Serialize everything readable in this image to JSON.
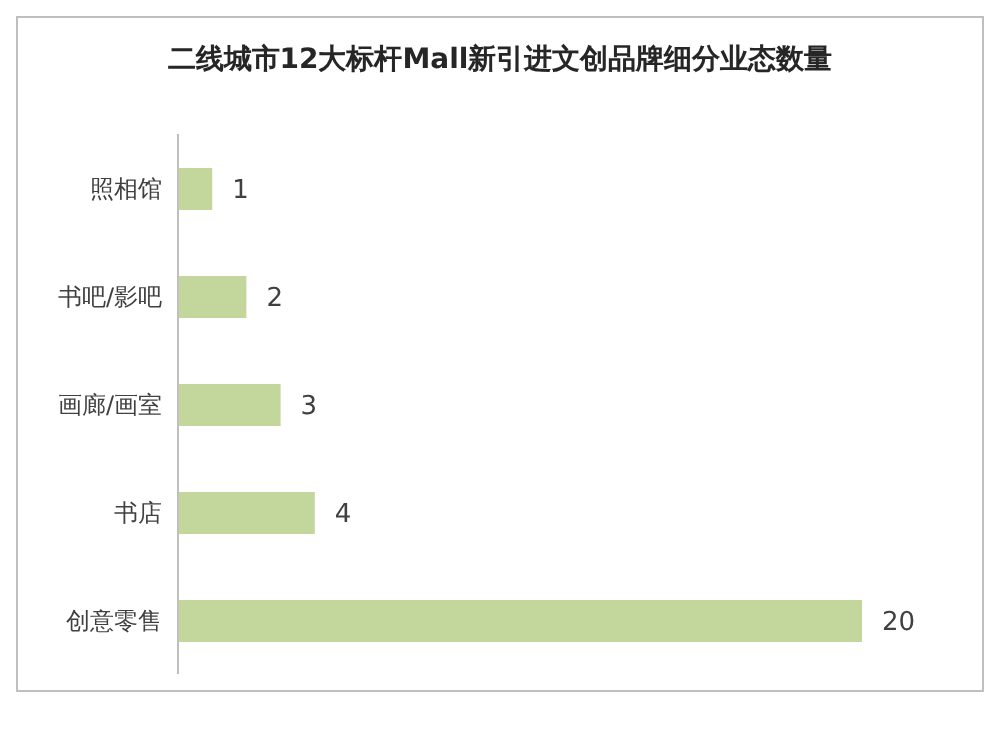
{
  "chart_data": {
    "type": "bar",
    "orientation": "horizontal",
    "title": "二线城市12大标杆Mall新引进文创品牌细分业态数量",
    "categories": [
      "照相馆",
      "书吧/影吧",
      "画廊/画室",
      "书店",
      "创意零售"
    ],
    "values": [
      1,
      2,
      3,
      4,
      20
    ],
    "color": "#c3d69b",
    "data_labels": true,
    "tick_labels": "y"
  }
}
